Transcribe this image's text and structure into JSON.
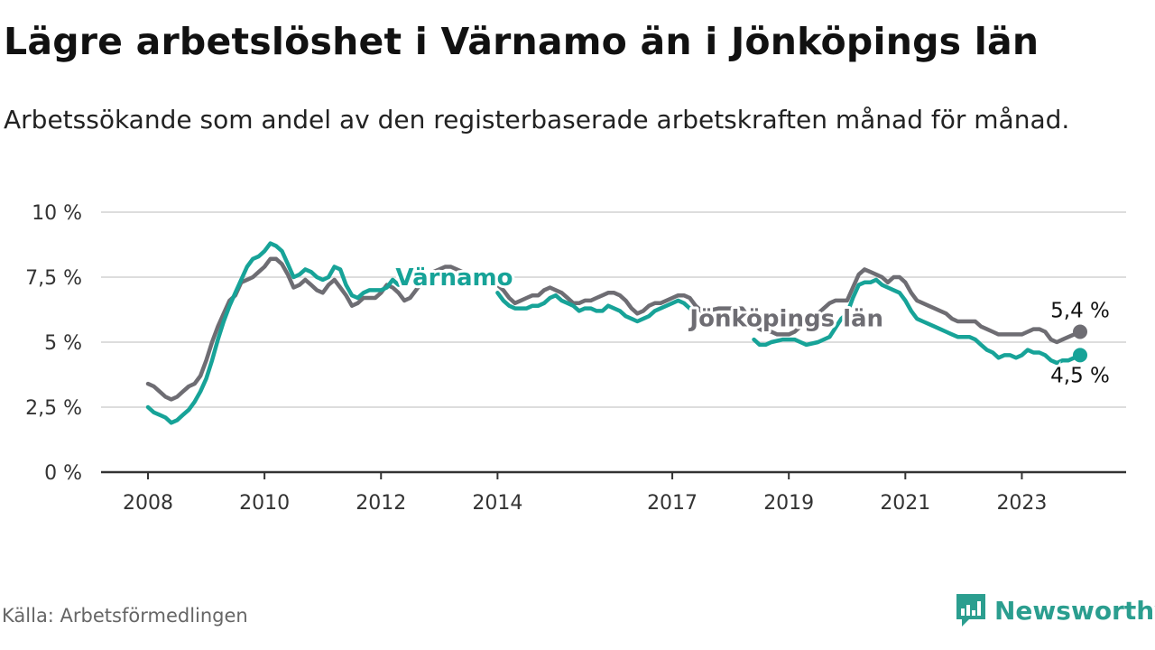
{
  "title": "Lägre arbetslöshet i Värnamo än i Jönköpings län",
  "subtitle": "Arbetssökande som andel av den registerbaserade arbetskraften månad för månad.",
  "source": "Källa: Arbetsförmedlingen",
  "brand": "Newsworthy",
  "colors": {
    "varnamo": "#17a398",
    "lan": "#6e6d73",
    "grid": "#dddddd",
    "axis": "#333333",
    "brand": "#2b9e8f"
  },
  "chart_data": {
    "type": "line",
    "title": "Lägre arbetslöshet i Värnamo än i Jönköpings län",
    "xlabel": "",
    "ylabel": "",
    "xlim": [
      2008.0,
      2024.4
    ],
    "ylim": [
      0,
      10
    ],
    "grid": true,
    "y_ticks": [
      {
        "value": 0,
        "label": "0 %"
      },
      {
        "value": 2.5,
        "label": "2,5 %"
      },
      {
        "value": 5,
        "label": "5 %"
      },
      {
        "value": 7.5,
        "label": "7,5 %"
      },
      {
        "value": 10,
        "label": "10 %"
      }
    ],
    "x_ticks": [
      {
        "value": 2008,
        "label": "2008"
      },
      {
        "value": 2010,
        "label": "2010"
      },
      {
        "value": 2012,
        "label": "2012"
      },
      {
        "value": 2014,
        "label": "2014"
      },
      {
        "value": 2017,
        "label": "2017"
      },
      {
        "value": 2019,
        "label": "2019"
      },
      {
        "value": 2021,
        "label": "2021"
      },
      {
        "value": 2023,
        "label": "2023"
      }
    ],
    "series": [
      {
        "name": "Jönköpings län",
        "color": "#6e6d73",
        "label_pos": [
          2017.3,
          5.6
        ],
        "end_label": "5,4 %",
        "points": [
          [
            2008.0,
            3.4
          ],
          [
            2008.1,
            3.3
          ],
          [
            2008.2,
            3.1
          ],
          [
            2008.3,
            2.9
          ],
          [
            2008.4,
            2.8
          ],
          [
            2008.5,
            2.9
          ],
          [
            2008.6,
            3.1
          ],
          [
            2008.7,
            3.3
          ],
          [
            2008.8,
            3.4
          ],
          [
            2008.9,
            3.7
          ],
          [
            2009.0,
            4.3
          ],
          [
            2009.1,
            5.0
          ],
          [
            2009.2,
            5.6
          ],
          [
            2009.3,
            6.1
          ],
          [
            2009.4,
            6.6
          ],
          [
            2009.5,
            6.8
          ],
          [
            2009.6,
            7.3
          ],
          [
            2009.7,
            7.4
          ],
          [
            2009.8,
            7.5
          ],
          [
            2009.9,
            7.7
          ],
          [
            2010.0,
            7.9
          ],
          [
            2010.1,
            8.2
          ],
          [
            2010.2,
            8.2
          ],
          [
            2010.3,
            8.0
          ],
          [
            2010.4,
            7.6
          ],
          [
            2010.5,
            7.1
          ],
          [
            2010.6,
            7.2
          ],
          [
            2010.7,
            7.4
          ],
          [
            2010.8,
            7.2
          ],
          [
            2010.9,
            7.0
          ],
          [
            2011.0,
            6.9
          ],
          [
            2011.1,
            7.2
          ],
          [
            2011.2,
            7.4
          ],
          [
            2011.3,
            7.1
          ],
          [
            2011.4,
            6.8
          ],
          [
            2011.5,
            6.4
          ],
          [
            2011.6,
            6.5
          ],
          [
            2011.7,
            6.7
          ],
          [
            2011.8,
            6.7
          ],
          [
            2011.9,
            6.7
          ],
          [
            2012.0,
            6.9
          ],
          [
            2012.1,
            7.2
          ],
          [
            2012.2,
            7.1
          ],
          [
            2012.3,
            6.9
          ],
          [
            2012.4,
            6.6
          ],
          [
            2012.5,
            6.7
          ],
          [
            2012.6,
            7.0
          ],
          [
            2012.7,
            7.3
          ],
          [
            2012.8,
            7.5
          ],
          [
            2012.9,
            7.7
          ],
          [
            2013.0,
            7.8
          ],
          [
            2013.1,
            7.9
          ],
          [
            2013.2,
            7.9
          ],
          [
            2013.3,
            7.8
          ],
          [
            2013.5,
            7.6
          ],
          [
            2013.7,
            7.4
          ],
          [
            2013.9,
            7.2
          ],
          [
            2014.0,
            7.2
          ],
          [
            2014.1,
            7.0
          ],
          [
            2014.2,
            6.7
          ],
          [
            2014.3,
            6.5
          ],
          [
            2014.4,
            6.6
          ],
          [
            2014.5,
            6.7
          ],
          [
            2014.6,
            6.8
          ],
          [
            2014.7,
            6.8
          ],
          [
            2014.8,
            7.0
          ],
          [
            2014.9,
            7.1
          ],
          [
            2015.0,
            7.0
          ],
          [
            2015.1,
            6.9
          ],
          [
            2015.2,
            6.7
          ],
          [
            2015.3,
            6.5
          ],
          [
            2015.4,
            6.5
          ],
          [
            2015.5,
            6.6
          ],
          [
            2015.6,
            6.6
          ],
          [
            2015.7,
            6.7
          ],
          [
            2015.8,
            6.8
          ],
          [
            2015.9,
            6.9
          ],
          [
            2016.0,
            6.9
          ],
          [
            2016.1,
            6.8
          ],
          [
            2016.2,
            6.6
          ],
          [
            2016.3,
            6.3
          ],
          [
            2016.4,
            6.1
          ],
          [
            2016.5,
            6.2
          ],
          [
            2016.6,
            6.4
          ],
          [
            2016.7,
            6.5
          ],
          [
            2016.8,
            6.5
          ],
          [
            2016.9,
            6.6
          ],
          [
            2017.0,
            6.7
          ],
          [
            2017.1,
            6.8
          ],
          [
            2017.2,
            6.8
          ],
          [
            2017.3,
            6.7
          ],
          [
            2017.4,
            6.4
          ],
          [
            2017.5,
            6.2
          ],
          [
            2017.6,
            6.2
          ],
          [
            2017.8,
            6.3
          ],
          [
            2018.0,
            6.3
          ],
          [
            2018.2,
            6.3
          ],
          [
            2018.3,
            6.0
          ],
          [
            2018.4,
            5.7
          ],
          [
            2018.5,
            5.5
          ],
          [
            2018.6,
            5.4
          ],
          [
            2018.7,
            5.4
          ],
          [
            2018.8,
            5.3
          ],
          [
            2018.9,
            5.3
          ],
          [
            2019.0,
            5.3
          ],
          [
            2019.1,
            5.4
          ],
          [
            2019.2,
            5.6
          ],
          [
            2019.3,
            5.8
          ],
          [
            2019.4,
            5.9
          ],
          [
            2019.5,
            6.1
          ],
          [
            2019.6,
            6.3
          ],
          [
            2019.7,
            6.5
          ],
          [
            2019.8,
            6.6
          ],
          [
            2019.9,
            6.6
          ],
          [
            2020.0,
            6.6
          ],
          [
            2020.1,
            7.1
          ],
          [
            2020.2,
            7.6
          ],
          [
            2020.3,
            7.8
          ],
          [
            2020.4,
            7.7
          ],
          [
            2020.5,
            7.6
          ],
          [
            2020.6,
            7.5
          ],
          [
            2020.7,
            7.3
          ],
          [
            2020.8,
            7.5
          ],
          [
            2020.9,
            7.5
          ],
          [
            2021.0,
            7.3
          ],
          [
            2021.1,
            6.9
          ],
          [
            2021.2,
            6.6
          ],
          [
            2021.3,
            6.5
          ],
          [
            2021.4,
            6.4
          ],
          [
            2021.5,
            6.3
          ],
          [
            2021.6,
            6.2
          ],
          [
            2021.7,
            6.1
          ],
          [
            2021.8,
            5.9
          ],
          [
            2021.9,
            5.8
          ],
          [
            2022.0,
            5.8
          ],
          [
            2022.1,
            5.8
          ],
          [
            2022.2,
            5.8
          ],
          [
            2022.3,
            5.6
          ],
          [
            2022.4,
            5.5
          ],
          [
            2022.5,
            5.4
          ],
          [
            2022.6,
            5.3
          ],
          [
            2022.7,
            5.3
          ],
          [
            2022.8,
            5.3
          ],
          [
            2022.9,
            5.3
          ],
          [
            2023.0,
            5.3
          ],
          [
            2023.1,
            5.4
          ],
          [
            2023.2,
            5.5
          ],
          [
            2023.3,
            5.5
          ],
          [
            2023.4,
            5.4
          ],
          [
            2023.5,
            5.1
          ],
          [
            2023.6,
            5.0
          ],
          [
            2023.7,
            5.1
          ],
          [
            2023.8,
            5.2
          ],
          [
            2023.9,
            5.3
          ],
          [
            2024.0,
            5.4
          ]
        ]
      },
      {
        "name": "Värnamo",
        "color": "#17a398",
        "label_pos": [
          2012.25,
          7.18
        ],
        "end_label": "4,5 %",
        "points": [
          [
            2008.0,
            2.5
          ],
          [
            2008.1,
            2.3
          ],
          [
            2008.2,
            2.2
          ],
          [
            2008.3,
            2.1
          ],
          [
            2008.4,
            1.9
          ],
          [
            2008.5,
            2.0
          ],
          [
            2008.6,
            2.2
          ],
          [
            2008.7,
            2.4
          ],
          [
            2008.8,
            2.7
          ],
          [
            2008.9,
            3.1
          ],
          [
            2009.0,
            3.6
          ],
          [
            2009.1,
            4.3
          ],
          [
            2009.2,
            5.1
          ],
          [
            2009.3,
            5.8
          ],
          [
            2009.4,
            6.4
          ],
          [
            2009.5,
            6.9
          ],
          [
            2009.6,
            7.4
          ],
          [
            2009.7,
            7.9
          ],
          [
            2009.8,
            8.2
          ],
          [
            2009.9,
            8.3
          ],
          [
            2010.0,
            8.5
          ],
          [
            2010.1,
            8.8
          ],
          [
            2010.2,
            8.7
          ],
          [
            2010.3,
            8.5
          ],
          [
            2010.4,
            8.0
          ],
          [
            2010.5,
            7.5
          ],
          [
            2010.6,
            7.6
          ],
          [
            2010.7,
            7.8
          ],
          [
            2010.8,
            7.7
          ],
          [
            2010.9,
            7.5
          ],
          [
            2011.0,
            7.4
          ],
          [
            2011.1,
            7.5
          ],
          [
            2011.2,
            7.9
          ],
          [
            2011.3,
            7.8
          ],
          [
            2011.4,
            7.2
          ],
          [
            2011.5,
            6.8
          ],
          [
            2011.6,
            6.7
          ],
          [
            2011.7,
            6.9
          ],
          [
            2011.8,
            7.0
          ],
          [
            2011.9,
            7.0
          ],
          [
            2012.0,
            7.0
          ],
          [
            2012.1,
            7.1
          ],
          [
            2012.2,
            7.4
          ],
          [
            2012.3,
            7.2
          ],
          [
            2014.0,
            6.9
          ],
          [
            2014.1,
            6.6
          ],
          [
            2014.2,
            6.4
          ],
          [
            2014.3,
            6.3
          ],
          [
            2014.4,
            6.3
          ],
          [
            2014.5,
            6.3
          ],
          [
            2014.6,
            6.4
          ],
          [
            2014.7,
            6.4
          ],
          [
            2014.8,
            6.5
          ],
          [
            2014.9,
            6.7
          ],
          [
            2015.0,
            6.8
          ],
          [
            2015.1,
            6.6
          ],
          [
            2015.2,
            6.5
          ],
          [
            2015.3,
            6.4
          ],
          [
            2015.4,
            6.2
          ],
          [
            2015.5,
            6.3
          ],
          [
            2015.6,
            6.3
          ],
          [
            2015.7,
            6.2
          ],
          [
            2015.8,
            6.2
          ],
          [
            2015.9,
            6.4
          ],
          [
            2016.0,
            6.3
          ],
          [
            2016.1,
            6.2
          ],
          [
            2016.2,
            6.0
          ],
          [
            2016.3,
            5.9
          ],
          [
            2016.4,
            5.8
          ],
          [
            2016.5,
            5.9
          ],
          [
            2016.6,
            6.0
          ],
          [
            2016.7,
            6.2
          ],
          [
            2016.8,
            6.3
          ],
          [
            2016.9,
            6.4
          ],
          [
            2017.0,
            6.5
          ],
          [
            2017.1,
            6.6
          ],
          [
            2017.2,
            6.5
          ],
          [
            2017.3,
            6.3
          ],
          [
            2018.4,
            5.1
          ],
          [
            2018.5,
            4.9
          ],
          [
            2018.6,
            4.9
          ],
          [
            2018.7,
            5.0
          ],
          [
            2018.9,
            5.1
          ],
          [
            2019.1,
            5.1
          ],
          [
            2019.2,
            5.0
          ],
          [
            2019.3,
            4.9
          ],
          [
            2019.5,
            5.0
          ],
          [
            2019.7,
            5.2
          ],
          [
            2019.9,
            5.9
          ],
          [
            2020.0,
            6.1
          ],
          [
            2020.1,
            6.7
          ],
          [
            2020.2,
            7.2
          ],
          [
            2020.3,
            7.3
          ],
          [
            2020.4,
            7.3
          ],
          [
            2020.5,
            7.4
          ],
          [
            2020.6,
            7.2
          ],
          [
            2020.7,
            7.1
          ],
          [
            2020.8,
            7.0
          ],
          [
            2020.9,
            6.9
          ],
          [
            2021.0,
            6.6
          ],
          [
            2021.1,
            6.2
          ],
          [
            2021.2,
            5.9
          ],
          [
            2021.3,
            5.8
          ],
          [
            2021.4,
            5.7
          ],
          [
            2021.5,
            5.6
          ],
          [
            2021.6,
            5.5
          ],
          [
            2021.7,
            5.4
          ],
          [
            2021.8,
            5.3
          ],
          [
            2021.9,
            5.2
          ],
          [
            2022.0,
            5.2
          ],
          [
            2022.1,
            5.2
          ],
          [
            2022.2,
            5.1
          ],
          [
            2022.3,
            4.9
          ],
          [
            2022.4,
            4.7
          ],
          [
            2022.5,
            4.6
          ],
          [
            2022.6,
            4.4
          ],
          [
            2022.7,
            4.5
          ],
          [
            2022.8,
            4.5
          ],
          [
            2022.9,
            4.4
          ],
          [
            2023.0,
            4.5
          ],
          [
            2023.1,
            4.7
          ],
          [
            2023.2,
            4.6
          ],
          [
            2023.3,
            4.6
          ],
          [
            2023.4,
            4.5
          ],
          [
            2023.5,
            4.3
          ],
          [
            2023.6,
            4.2
          ],
          [
            2023.7,
            4.3
          ],
          [
            2023.8,
            4.3
          ],
          [
            2023.9,
            4.4
          ],
          [
            2024.0,
            4.5
          ]
        ]
      }
    ]
  }
}
